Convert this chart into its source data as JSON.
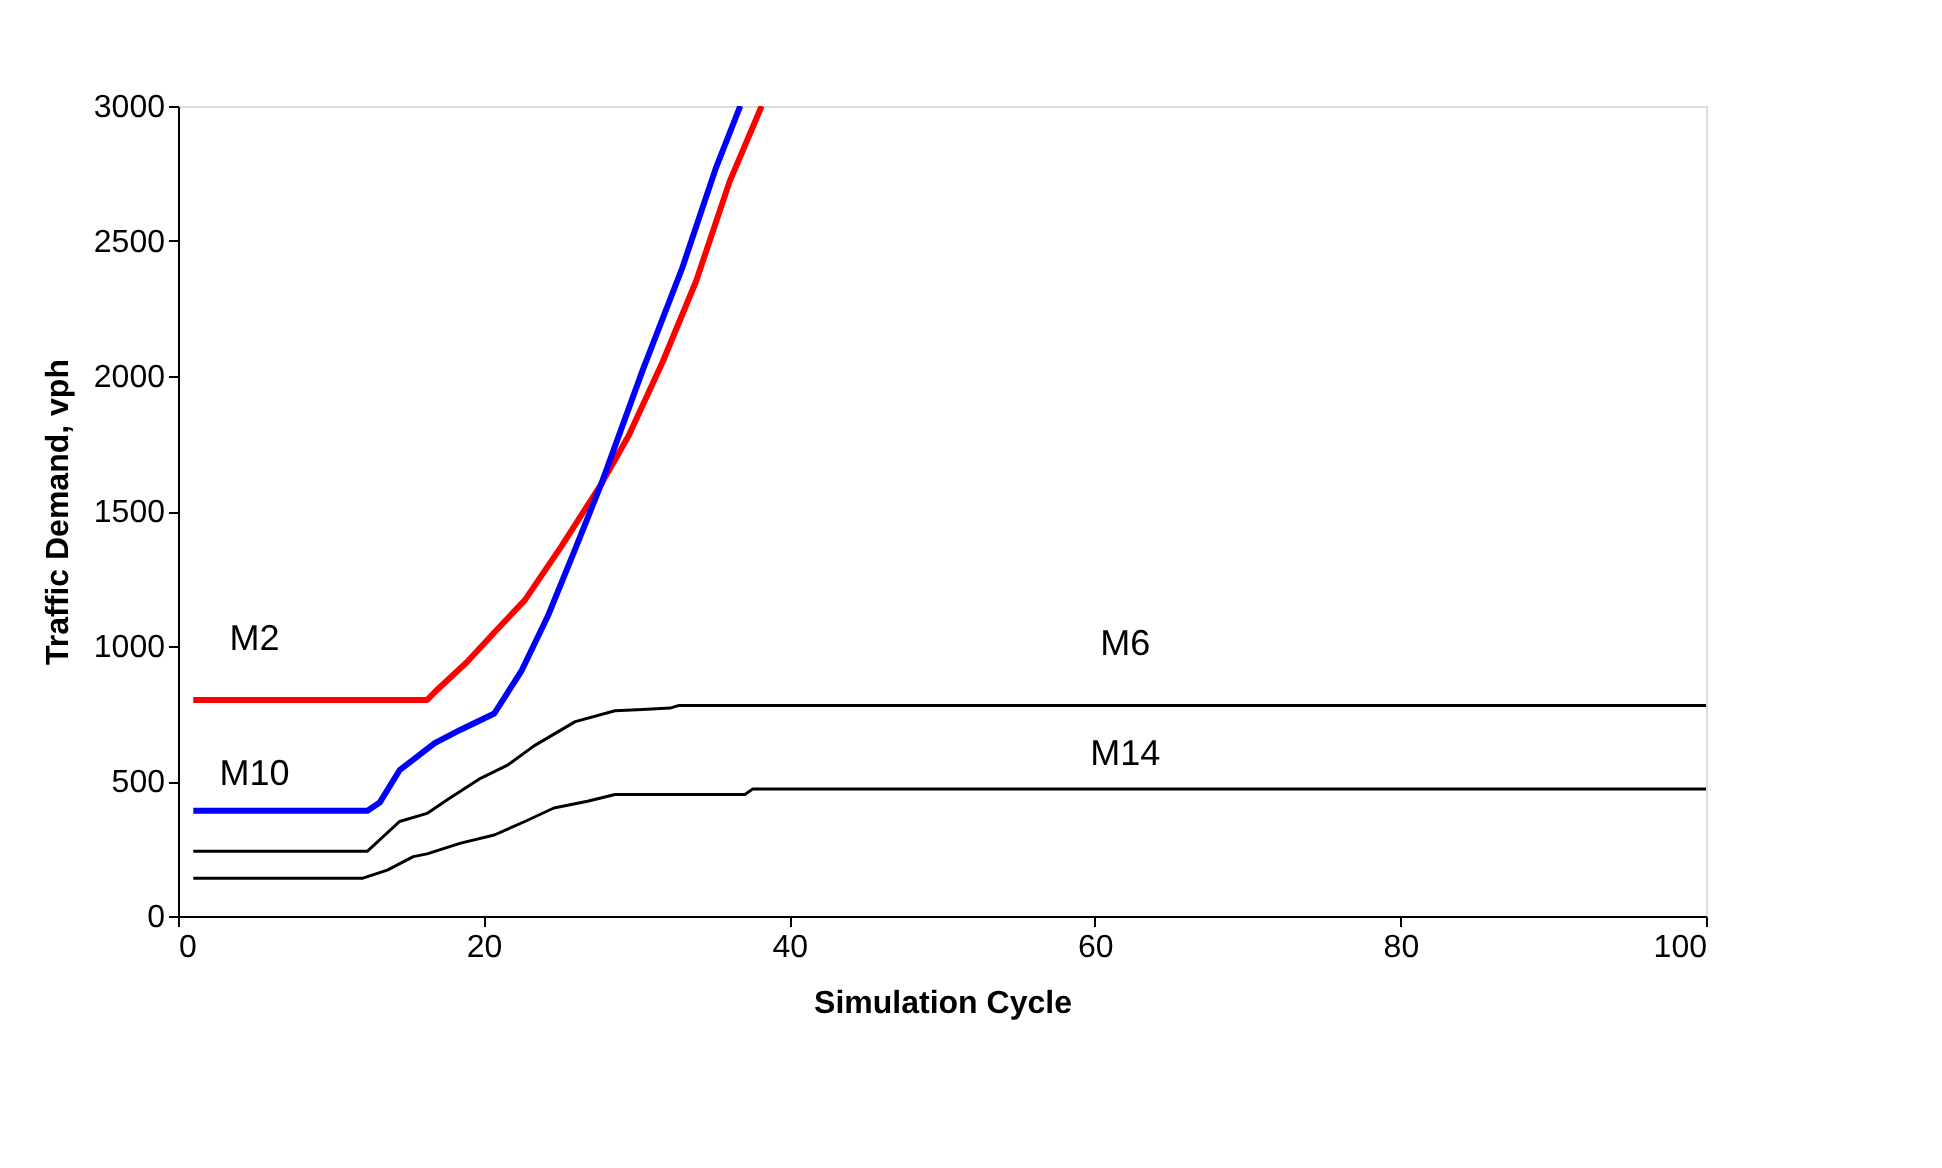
{
  "chart_data": {
    "type": "line",
    "xlabel": "Simulation Cycle",
    "ylabel": "Traffic Demand, vph",
    "xlim": [
      0,
      100
    ],
    "xticks": [
      0,
      20,
      40,
      60,
      80,
      100
    ],
    "ylim": [
      0,
      3000
    ],
    "yticks": [
      0,
      500,
      1000,
      1500,
      2000,
      2500,
      3000
    ],
    "grid": false,
    "legend": false,
    "marker": "none",
    "line_style": "solid",
    "series": [
      {
        "name": "M2",
        "color": "#ff0000",
        "x": [
          1,
          16.3,
          17,
          18.9,
          20.7,
          22.7,
          25.1,
          27.7,
          29.5,
          31.7,
          33.9,
          36.1,
          38.2
        ],
        "values": [
          800,
          800,
          840,
          940,
          1050,
          1170,
          1370,
          1600,
          1780,
          2050,
          2350,
          2720,
          3000
        ]
      },
      {
        "name": "M10",
        "color": "#0000ff",
        "x": [
          1,
          12.4,
          13.2,
          14.5,
          16.8,
          18.5,
          20.7,
          22.5,
          24.2,
          26,
          27.7,
          30.4,
          33,
          35.2,
          36.8
        ],
        "values": [
          390,
          390,
          420,
          540,
          640,
          690,
          750,
          910,
          1110,
          1360,
          1600,
          2020,
          2400,
          2770,
          3000
        ]
      },
      {
        "name": "M6",
        "color": "#000000",
        "x": [
          1,
          12.4,
          14.5,
          16.3,
          17.6,
          19.8,
          21.6,
          23.3,
          26,
          28.6,
          30.4,
          32.2,
          32.8,
          100
        ],
        "values": [
          240,
          240,
          350,
          380,
          430,
          510,
          560,
          630,
          720,
          760,
          765,
          770,
          780,
          780
        ]
      },
      {
        "name": "M14",
        "color": "#000000",
        "x": [
          1,
          12.1,
          13.7,
          15.4,
          16.3,
          18.5,
          20.7,
          22.7,
          24.6,
          26.8,
          28.6,
          37.1,
          37.6,
          100
        ],
        "values": [
          140,
          140,
          170,
          220,
          230,
          270,
          300,
          350,
          400,
          425,
          450,
          450,
          470,
          470
        ]
      }
    ]
  }
}
